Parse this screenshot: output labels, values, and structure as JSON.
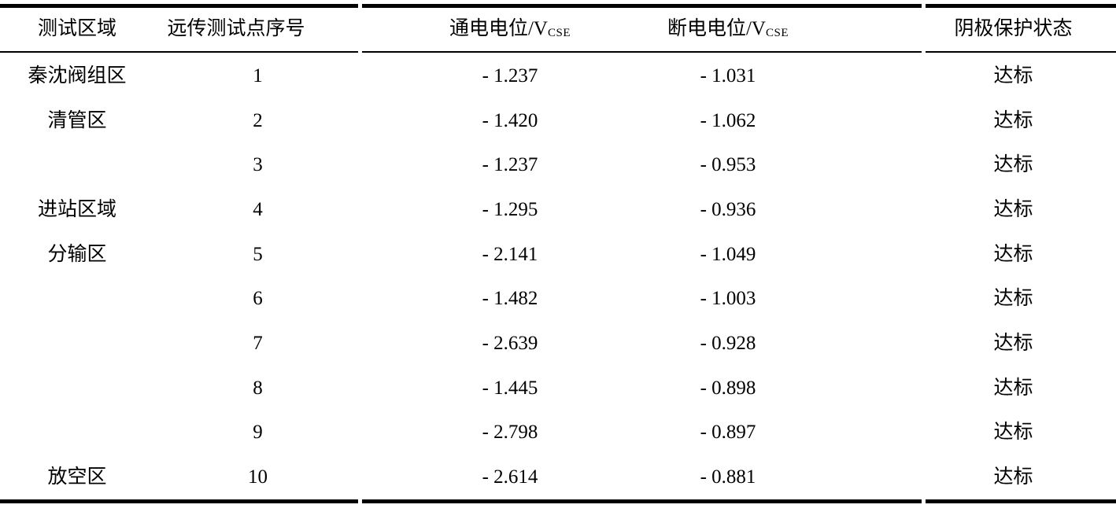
{
  "table": {
    "columns": [
      {
        "label": "测试区域"
      },
      {
        "label": "远传测试点序号"
      },
      {
        "label_prefix": "通电电位/V",
        "label_sub": "CSE"
      },
      {
        "label_prefix": "断电电位/V",
        "label_sub": "CSE"
      },
      {
        "label": "阴极保护状态"
      }
    ],
    "rows": [
      {
        "area": "秦沈阀组区",
        "point": "1",
        "on_potential": "- 1.237",
        "off_potential": "- 1.031",
        "status": "达标"
      },
      {
        "area": "清管区",
        "point": "2",
        "on_potential": "- 1.420",
        "off_potential": "- 1.062",
        "status": "达标"
      },
      {
        "area": "",
        "point": "3",
        "on_potential": "- 1.237",
        "off_potential": "- 0.953",
        "status": "达标"
      },
      {
        "area": "进站区域",
        "point": "4",
        "on_potential": "- 1.295",
        "off_potential": "- 0.936",
        "status": "达标"
      },
      {
        "area": "分输区",
        "point": "5",
        "on_potential": "- 2.141",
        "off_potential": "- 1.049",
        "status": "达标"
      },
      {
        "area": "",
        "point": "6",
        "on_potential": "- 1.482",
        "off_potential": "- 1.003",
        "status": "达标"
      },
      {
        "area": "",
        "point": "7",
        "on_potential": "- 2.639",
        "off_potential": "- 0.928",
        "status": "达标"
      },
      {
        "area": "",
        "point": "8",
        "on_potential": "- 1.445",
        "off_potential": "- 0.898",
        "status": "达标"
      },
      {
        "area": "",
        "point": "9",
        "on_potential": "- 2.798",
        "off_potential": "- 0.897",
        "status": "达标"
      },
      {
        "area": "放空区",
        "point": "10",
        "on_potential": "- 2.614",
        "off_potential": "- 0.881",
        "status": "达标"
      }
    ]
  }
}
